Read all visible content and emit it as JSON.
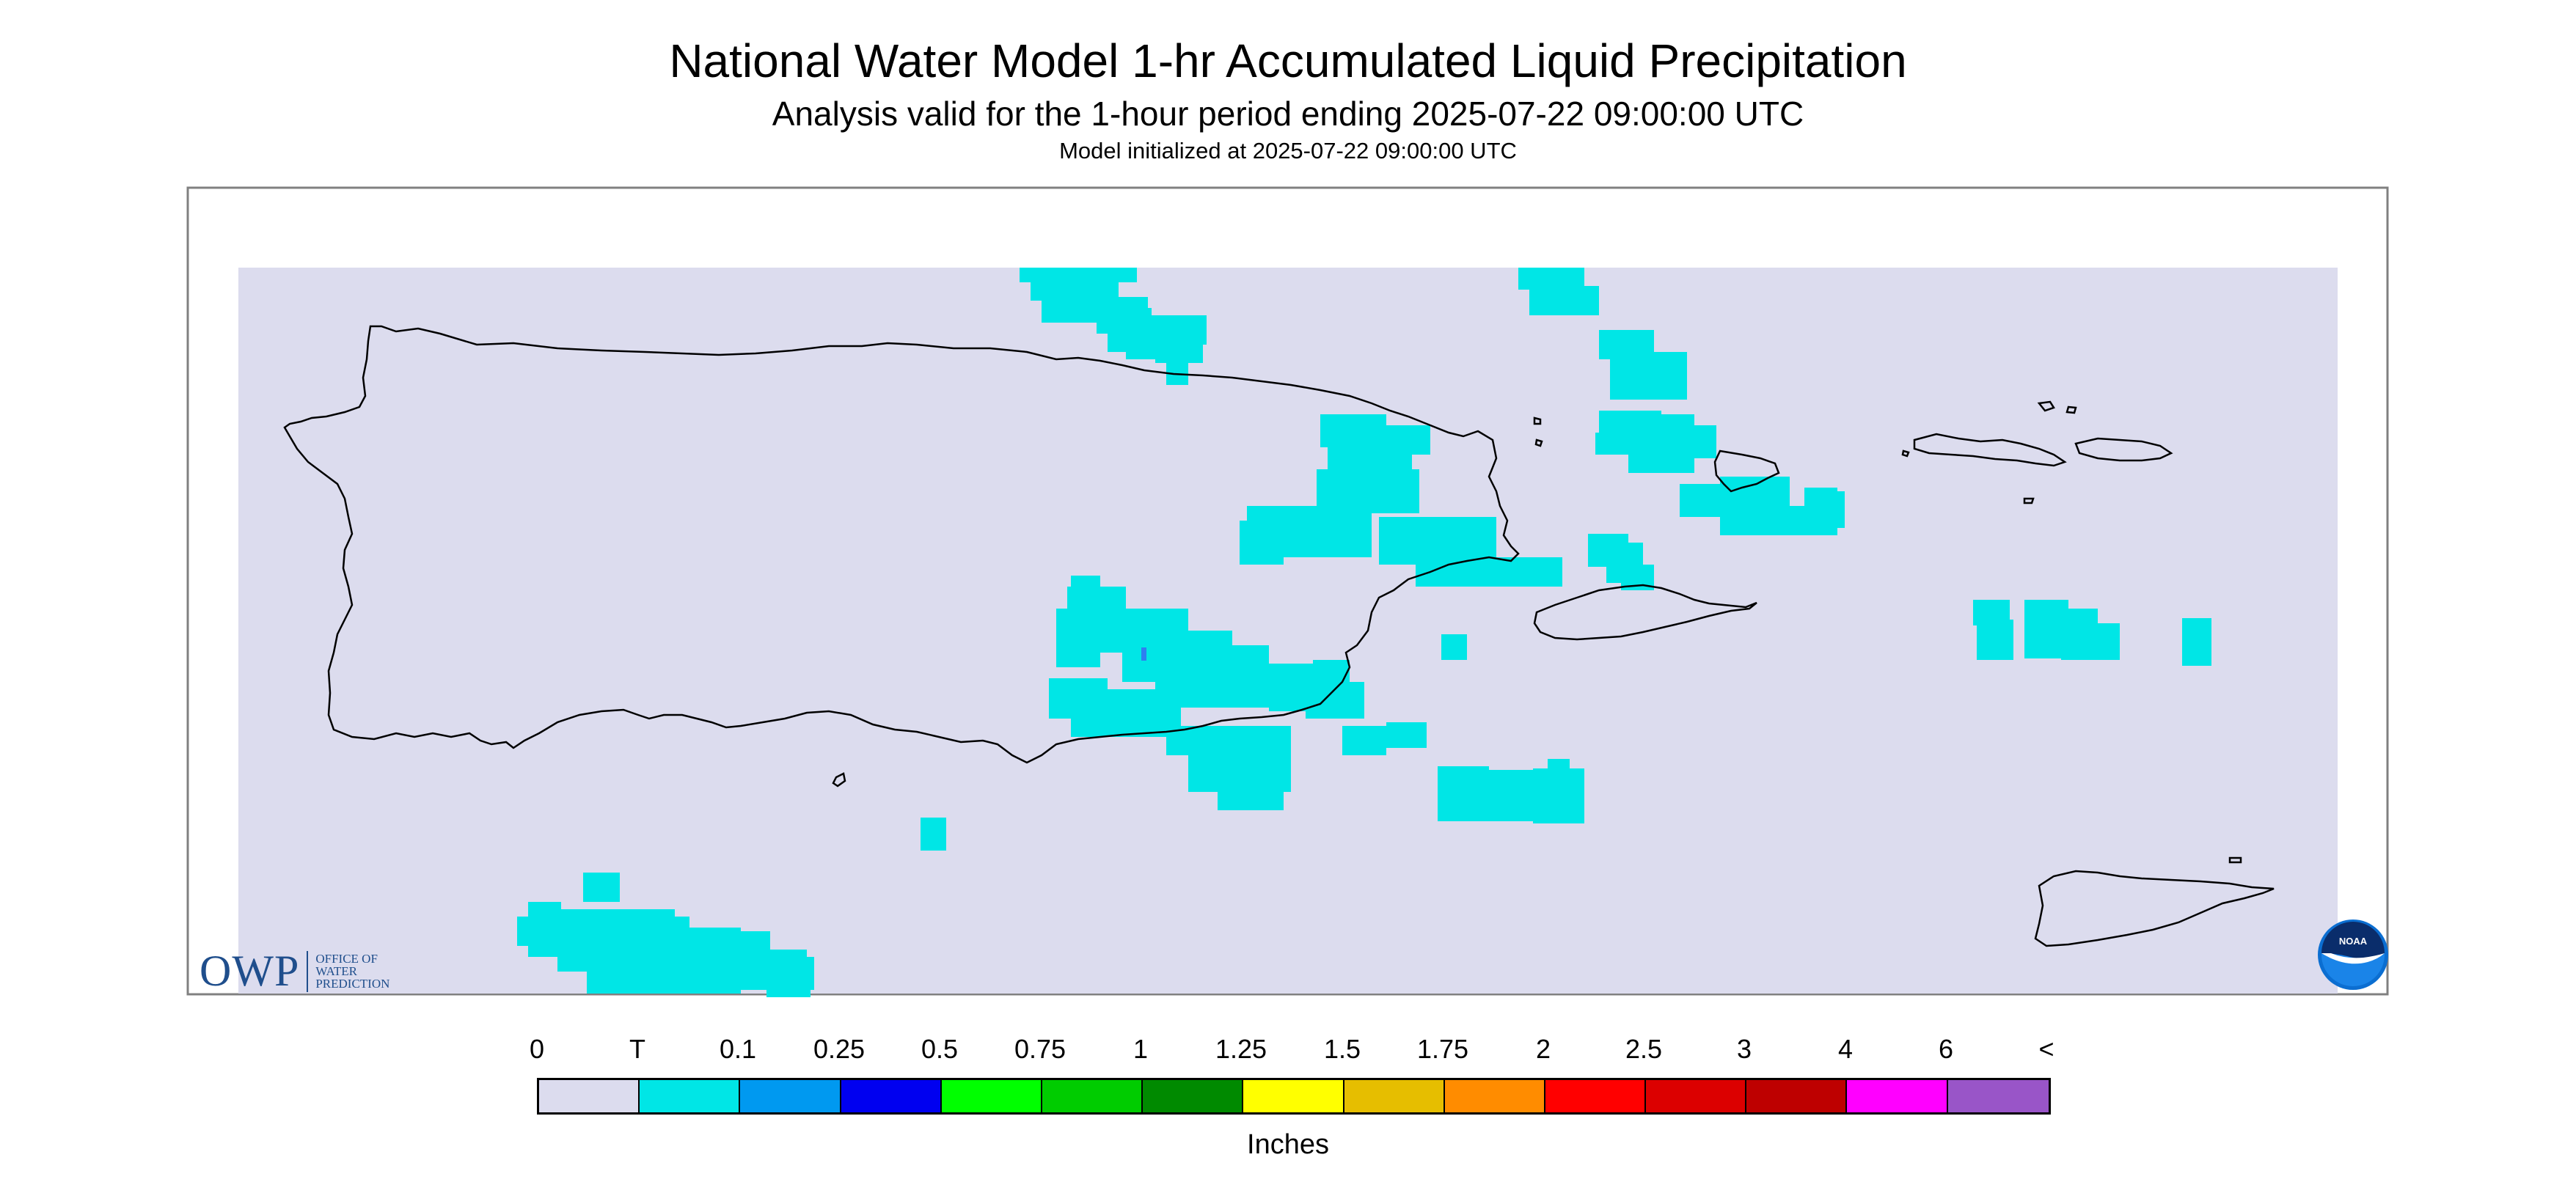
{
  "header": {
    "title": "National Water Model 1-hr Accumulated Liquid Precipitation",
    "subtitle": "Analysis valid for the 1-hour period ending 2025-07-22 09:00:00 UTC",
    "init": "Model initialized at 2025-07-22 09:00:00 UTC"
  },
  "legend": {
    "labels": [
      "0",
      "T",
      "0.1",
      "0.25",
      "0.5",
      "0.75",
      "1",
      "1.25",
      "1.5",
      "1.75",
      "2",
      "2.5",
      "3",
      "4",
      "6",
      "<"
    ],
    "colors": [
      "#dcdcee",
      "#00e6e6",
      "#0099f0",
      "#0000f0",
      "#00ff00",
      "#00cc00",
      "#008a00",
      "#ffff00",
      "#e6be00",
      "#ff8c00",
      "#ff0000",
      "#dc0000",
      "#be0000",
      "#ff00ff",
      "#9955c8"
    ],
    "units": "Inches"
  },
  "map": {
    "background_color": "#dcdcee",
    "precip_color": "#00e6e6",
    "heavier_color": "#2f7ff0",
    "coast_color": "#000000",
    "precip_category": "T (trace to 0.1 in)"
  },
  "logos": {
    "owp_mark": "OWP",
    "owp_text": [
      "OFFICE OF",
      "WATER",
      "PREDICTION"
    ],
    "noaa": "NOAA"
  }
}
